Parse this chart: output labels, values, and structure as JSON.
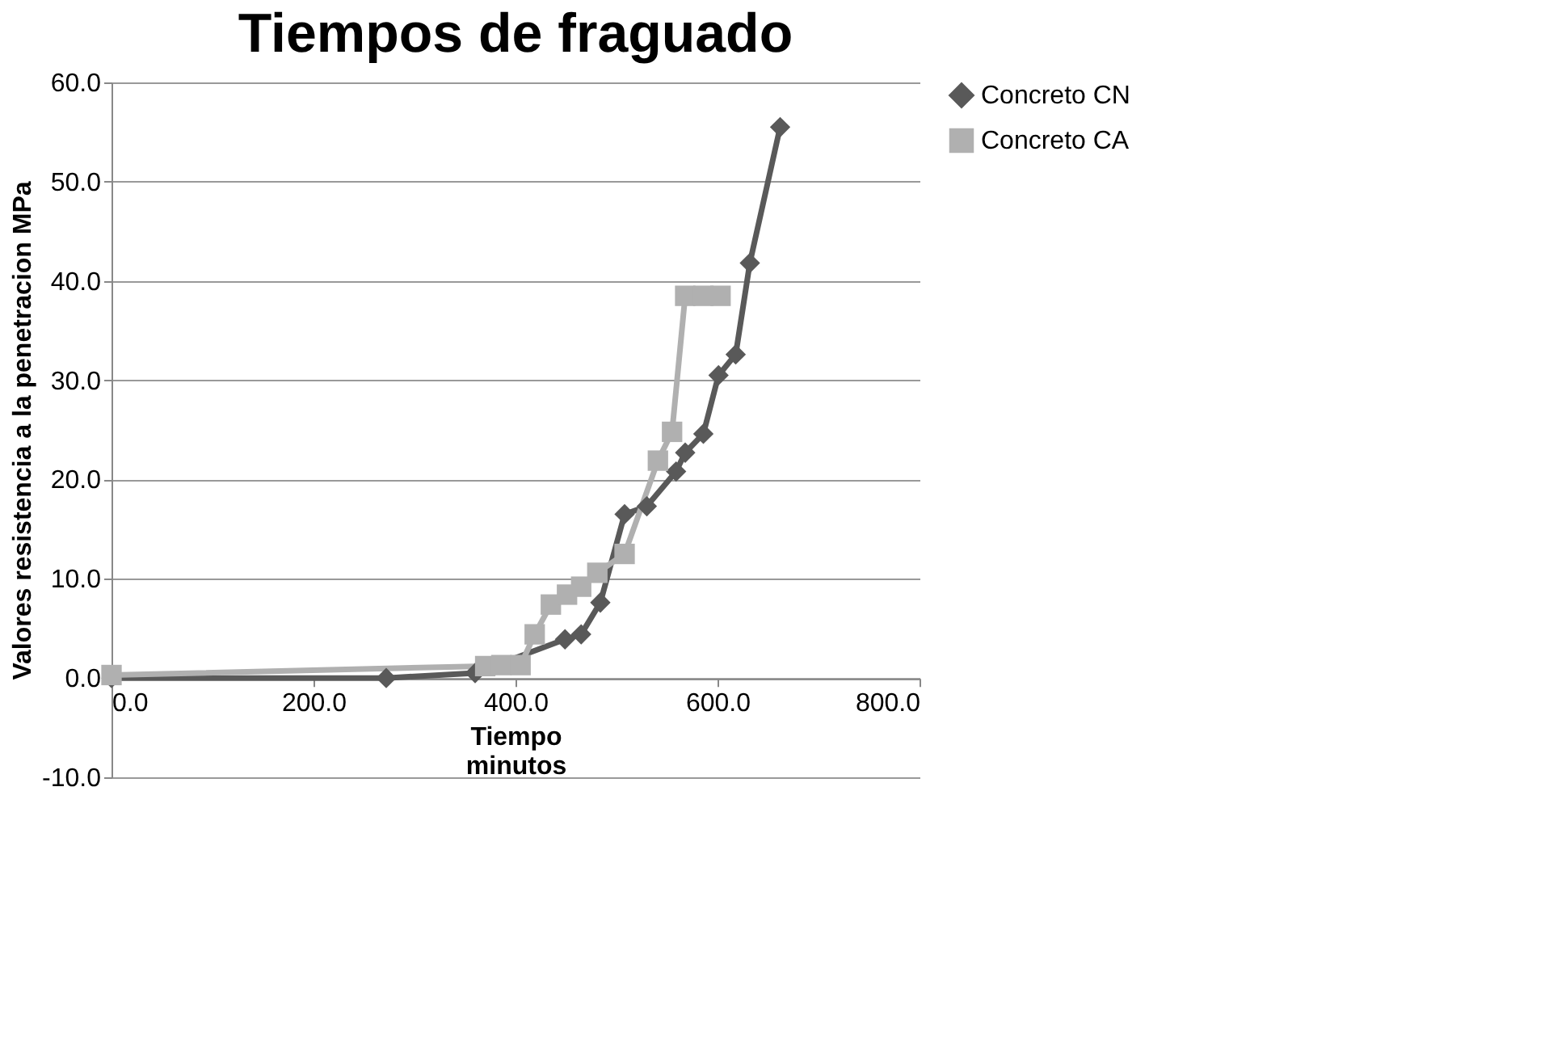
{
  "chart_data": {
    "type": "line",
    "title": "Tiempos de fraguado",
    "xlabel": "Tiempo\nminutos",
    "ylabel": "Valores resistencia a la penetracion MPa",
    "xlim": [
      0,
      800
    ],
    "xticks": [
      {
        "value": 0,
        "label": "0.0"
      },
      {
        "value": 200,
        "label": "200.0"
      },
      {
        "value": 400,
        "label": "400.0"
      },
      {
        "value": 600,
        "label": "600.0"
      },
      {
        "value": 800,
        "label": "800.0"
      }
    ],
    "ylim": [
      -10,
      60
    ],
    "yticks": [
      {
        "value": -10,
        "label": "-10.0"
      },
      {
        "value": 0,
        "label": "0.0"
      },
      {
        "value": 10,
        "label": "10.0"
      },
      {
        "value": 20,
        "label": "20.0"
      },
      {
        "value": 30,
        "label": "30.0"
      },
      {
        "value": 40,
        "label": "40.0"
      },
      {
        "value": 50,
        "label": "50.0"
      },
      {
        "value": 60,
        "label": "60.0"
      }
    ],
    "grid": "y",
    "legend": "right",
    "line_style": "solid",
    "series": [
      {
        "name": "Concreto CN",
        "color": "#595959",
        "marker": "diamond",
        "x": [
          0,
          272,
          360,
          449,
          465,
          484,
          508,
          530,
          559,
          568,
          586,
          601,
          618,
          632,
          662
        ],
        "values": [
          0,
          0,
          0.5,
          3.9,
          4.4,
          7.6,
          16.5,
          17.3,
          20.8,
          22.7,
          24.6,
          30.5,
          32.6,
          41.8,
          55.5
        ]
      },
      {
        "name": "Concreto CA",
        "color": "#b0b0b0",
        "marker": "square",
        "x": [
          0,
          370,
          386,
          405,
          419,
          435,
          451,
          465,
          481,
          508,
          541,
          555,
          568,
          586,
          603
        ],
        "values": [
          0.3,
          1.2,
          1.3,
          1.3,
          4.4,
          7.4,
          8.4,
          9.2,
          10.6,
          12.5,
          21.9,
          24.8,
          38.5,
          38.5,
          38.5
        ]
      }
    ]
  }
}
